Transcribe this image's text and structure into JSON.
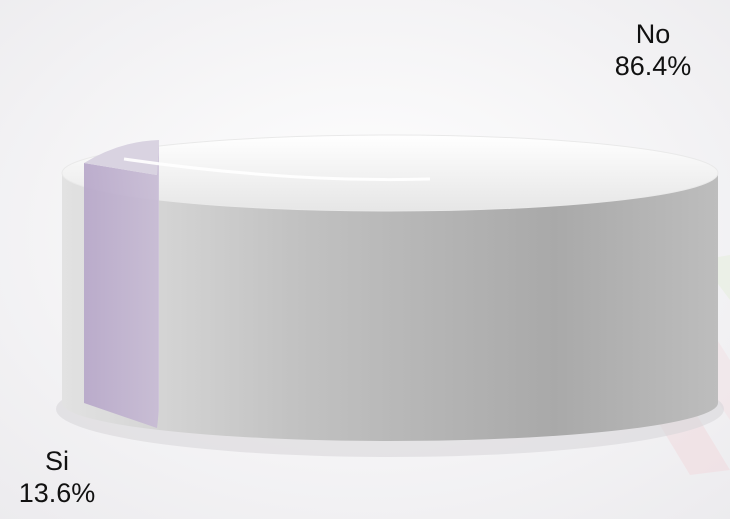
{
  "chart_data": {
    "type": "pie",
    "style": "3d",
    "title": "",
    "slices": [
      {
        "label": "No",
        "value": 86.4,
        "display": "86.4%",
        "color": "#c9c9c9"
      },
      {
        "label": "Si",
        "value": 13.6,
        "display": "13.6%",
        "color": "#b9a9c9"
      }
    ],
    "legend": "none",
    "data_labels": "outside"
  }
}
